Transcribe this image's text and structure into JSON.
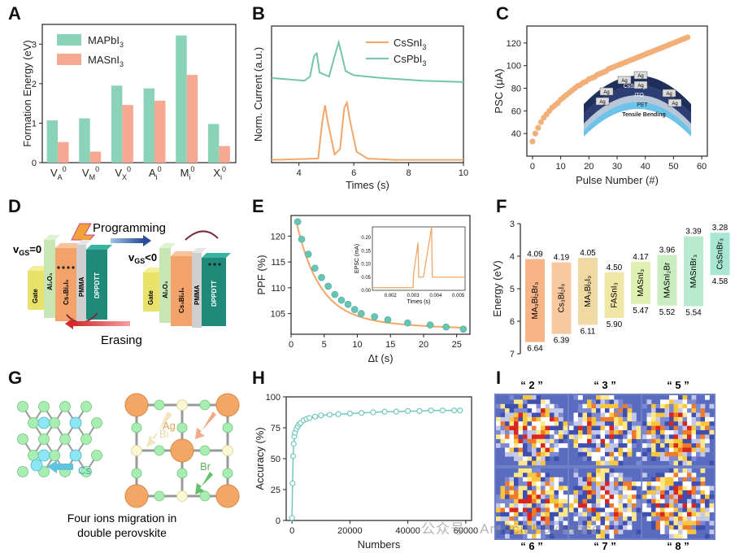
{
  "panels": {
    "A": {
      "letter": "A"
    },
    "B": {
      "letter": "B"
    },
    "C": {
      "letter": "C"
    },
    "D": {
      "letter": "D"
    },
    "E": {
      "letter": "E"
    },
    "F": {
      "letter": "F"
    },
    "G": {
      "letter": "G"
    },
    "H": {
      "letter": "H"
    },
    "I": {
      "letter": "I"
    }
  },
  "colors": {
    "teal": "#7fd0b6",
    "salmon": "#f4a58a",
    "orange": "#f0a868",
    "green_line": "#6fc3a3",
    "accent_dot": "#68c4b4"
  },
  "chart_data": [
    {
      "id": "A",
      "type": "bar",
      "ylabel": "Formation Energy (eV)",
      "categories": [
        "V",
        "V",
        "V",
        "A",
        "M",
        "X"
      ],
      "category_subs": [
        "A",
        "M",
        "X",
        "i",
        "i",
        "i"
      ],
      "category_sups": [
        "0",
        "0",
        "0",
        "0",
        "0",
        "0"
      ],
      "ylim": [
        0,
        3.5
      ],
      "yticks": [
        "0",
        "1",
        "2",
        "3"
      ],
      "series": [
        {
          "name": "MAPbI",
          "name_sub": "3",
          "color": "#8ad3b9",
          "values": [
            1.07,
            1.12,
            1.95,
            1.88,
            3.22,
            0.98
          ]
        },
        {
          "name": "MASnI",
          "name_sub": "3",
          "color": "#f6a890",
          "values": [
            0.52,
            0.28,
            1.46,
            1.57,
            2.22,
            0.42
          ]
        }
      ],
      "legend": "top-left"
    },
    {
      "id": "B",
      "type": "line",
      "xlabel": "Times (s)",
      "ylabel": "Norm. Current (a.u.)",
      "xlim": [
        3,
        10
      ],
      "xticks": [
        "4",
        "6",
        "8",
        "10"
      ],
      "series": [
        {
          "name": "CsSnI",
          "name_sub": "3",
          "color": "#f2a66a",
          "x": [
            3.0,
            4.7,
            4.85,
            4.95,
            5.05,
            5.3,
            5.5,
            5.65,
            5.75,
            5.85,
            6.1,
            6.5,
            7.5,
            10.0
          ],
          "y": [
            0.02,
            0.03,
            0.3,
            0.42,
            0.3,
            0.06,
            0.1,
            0.4,
            0.44,
            0.32,
            0.08,
            0.03,
            0.02,
            0.02
          ]
        },
        {
          "name": "CsPbI",
          "name_sub": "3",
          "color": "#74c6a6",
          "x": [
            3.0,
            4.2,
            4.4,
            4.55,
            4.65,
            4.75,
            5.1,
            5.3,
            5.45,
            5.55,
            5.7,
            6.0,
            7.0,
            8.5,
            10.0
          ],
          "y": [
            0.62,
            0.6,
            0.63,
            0.78,
            0.8,
            0.66,
            0.63,
            0.78,
            0.88,
            0.8,
            0.67,
            0.64,
            0.62,
            0.6,
            0.59
          ]
        }
      ],
      "legend": "top-right"
    },
    {
      "id": "C",
      "type": "scatter",
      "xlabel": "Pulse Number (#)",
      "ylabel": "PSC (μA)",
      "xlim": [
        -2,
        62
      ],
      "ylim": [
        20,
        135
      ],
      "xticks": [
        "0",
        "10",
        "20",
        "30",
        "40",
        "50",
        "60"
      ],
      "yticks": [
        "40",
        "60",
        "80",
        "100",
        "120"
      ],
      "series": [
        {
          "name": "",
          "color": "#f2b078",
          "x": [
            0,
            1,
            2,
            3,
            4,
            5,
            6,
            7,
            8,
            9,
            10,
            11,
            12,
            13,
            14,
            15,
            16,
            17,
            18,
            19,
            20,
            21,
            22,
            23,
            24,
            25,
            26,
            27,
            28,
            29,
            30,
            31,
            32,
            33,
            34,
            35,
            36,
            37,
            38,
            39,
            40,
            41,
            42,
            43,
            44,
            45,
            46,
            47,
            48,
            49,
            50,
            51,
            52,
            53,
            54,
            55
          ],
          "y": [
            33,
            40,
            45,
            50,
            54,
            57,
            60,
            63,
            65,
            67,
            70,
            72,
            74,
            76,
            78,
            80,
            82,
            83,
            85,
            86,
            88,
            89,
            90,
            92,
            93,
            94,
            95,
            97,
            98,
            99,
            100,
            101,
            102,
            103,
            104,
            105,
            106,
            107,
            108,
            109,
            110,
            111,
            112,
            113,
            114,
            115,
            116,
            117,
            118,
            119,
            120,
            121,
            122,
            123,
            124,
            125
          ]
        }
      ],
      "inset_labels": [
        "Ag",
        "Ag",
        "Ag",
        "Ag",
        "Ag",
        "Ag",
        "Ag",
        "CsSnCl",
        "ITO",
        "PET",
        "Tensile Bending"
      ],
      "inset_sub": "3"
    },
    {
      "id": "E",
      "type": "scatter",
      "xlabel": "Δt (s)",
      "ylabel": "PPF (%)",
      "xlim": [
        0,
        27
      ],
      "ylim": [
        101,
        124
      ],
      "xticks": [
        "0",
        "5",
        "10",
        "15",
        "20",
        "25"
      ],
      "yticks": [
        "105",
        "110",
        "115",
        "120"
      ],
      "series": [
        {
          "name": "",
          "color": "#68c4b4",
          "x": [
            1.0,
            1.6,
            2.6,
            3.6,
            4.6,
            5.6,
            6.6,
            7.6,
            8.6,
            9.6,
            10.6,
            12.6,
            14.6,
            17.6,
            21.0,
            23.4,
            26.0
          ],
          "y": [
            122.8,
            119.4,
            116.5,
            113.8,
            112.0,
            110.3,
            108.7,
            107.6,
            106.8,
            105.8,
            105.0,
            104.4,
            103.8,
            103.2,
            102.8,
            102.4,
            102.0
          ]
        }
      ],
      "inset": {
        "ylabel": "EPSC (mA)",
        "xlabel": "Times (s)",
        "xticks": [
          "0.002",
          "0.003",
          "0.004",
          "0.005"
        ],
        "yticks": [
          "0.00",
          "0.05",
          "0.10",
          "0.15",
          "0.20"
        ],
        "xlim": [
          0.0012,
          0.0053
        ],
        "ylim": [
          0,
          0.24
        ],
        "x": [
          0.0012,
          0.003,
          0.00302,
          0.00322,
          0.00325,
          0.00345,
          0.00348,
          0.00382,
          0.00385,
          0.0053
        ],
        "y": [
          0.01,
          0.01,
          0.06,
          0.18,
          0.05,
          0.05,
          0.06,
          0.24,
          0.05,
          0.05
        ]
      }
    },
    {
      "id": "F",
      "type": "bar",
      "ylabel": "Energy (eV)",
      "ylim": [
        3,
        7
      ],
      "yticks": [
        "3",
        "4",
        "5",
        "6",
        "7"
      ],
      "categories": [
        "MA₃Bi₂Br₉",
        "Cs₃Bi₂I₉",
        "MA₃Bi₂I₉",
        "FASnI₃",
        "MASnI₃",
        "MASnI₂Br",
        "MASnBr₃",
        "CsSnBr₃"
      ],
      "top_values": [
        4.09,
        4.19,
        4.05,
        4.5,
        4.17,
        3.96,
        3.39,
        3.28
      ],
      "bottom_values": [
        6.64,
        6.39,
        6.11,
        5.9,
        5.47,
        5.52,
        5.54,
        4.58
      ],
      "top_labels": [
        "4.09",
        "4.19",
        "4.05",
        "4.50",
        "4.17",
        "3.96",
        "3.39",
        "3.28"
      ],
      "bottom_labels": [
        "6.64",
        "6.39",
        "6.11",
        "5.90",
        "5.47",
        "5.52",
        "5.54",
        "4.58"
      ],
      "colors": [
        "#f6b487",
        "#f8c9a0",
        "#f1d9a4",
        "#f0e6a6",
        "#dff0b0",
        "#c9ecc0",
        "#b8ead0",
        "#a9e6d4"
      ]
    },
    {
      "id": "H",
      "type": "scatter",
      "xlabel": "Numbers",
      "ylabel": "Accuracy (%)",
      "xlim": [
        -2000,
        62000
      ],
      "ylim": [
        0,
        100
      ],
      "xticks": [
        "0",
        "20000",
        "40000",
        "60000"
      ],
      "yticks": [
        "0",
        "25",
        "50",
        "75",
        "100"
      ],
      "series": [
        {
          "name": "",
          "color": "#73c7c0",
          "x": [
            0,
            200,
            400,
            600,
            800,
            1000,
            1500,
            2000,
            2500,
            3000,
            4000,
            5000,
            6000,
            8000,
            10000,
            13000,
            16000,
            20000,
            24000,
            28000,
            32000,
            36000,
            40000,
            44000,
            48000,
            52000,
            56000,
            58000
          ],
          "y": [
            2,
            30,
            52,
            62,
            68,
            71,
            74,
            76,
            78,
            79,
            81,
            82,
            83,
            84,
            85,
            85.5,
            86,
            86.5,
            87,
            87.5,
            88,
            88,
            88.5,
            88.5,
            89,
            89,
            89,
            89
          ]
        }
      ]
    }
  ],
  "panelD": {
    "programming": "Programming",
    "erasing": "Erasing",
    "vgs0_prefix": "v",
    "vgs0_sub": "GS",
    "vgs0_suffix": "=0",
    "vgsneg_prefix": "v",
    "vgsneg_sub": "GS",
    "vgsneg_suffix": "<0",
    "layers": [
      "Gate",
      "Al₂O₃",
      "Cs₃Bi₂I₉",
      "PMMA",
      "DPPDTT"
    ]
  },
  "panelG": {
    "cs_label": "Cs",
    "bi_label": "Bi",
    "ag_label": "Ag",
    "br_label": "Br",
    "caption_line1": "Four ions migration in",
    "caption_line2": "double perovskite"
  },
  "panelI": {
    "labels": [
      "“ 2 ”",
      "“ 3 ”",
      "“ 5 ”",
      "“ 6 ”",
      "“ 7 ”",
      "“ 8 ”"
    ]
  },
  "watermark": "公众号 · Artificial Synapse"
}
